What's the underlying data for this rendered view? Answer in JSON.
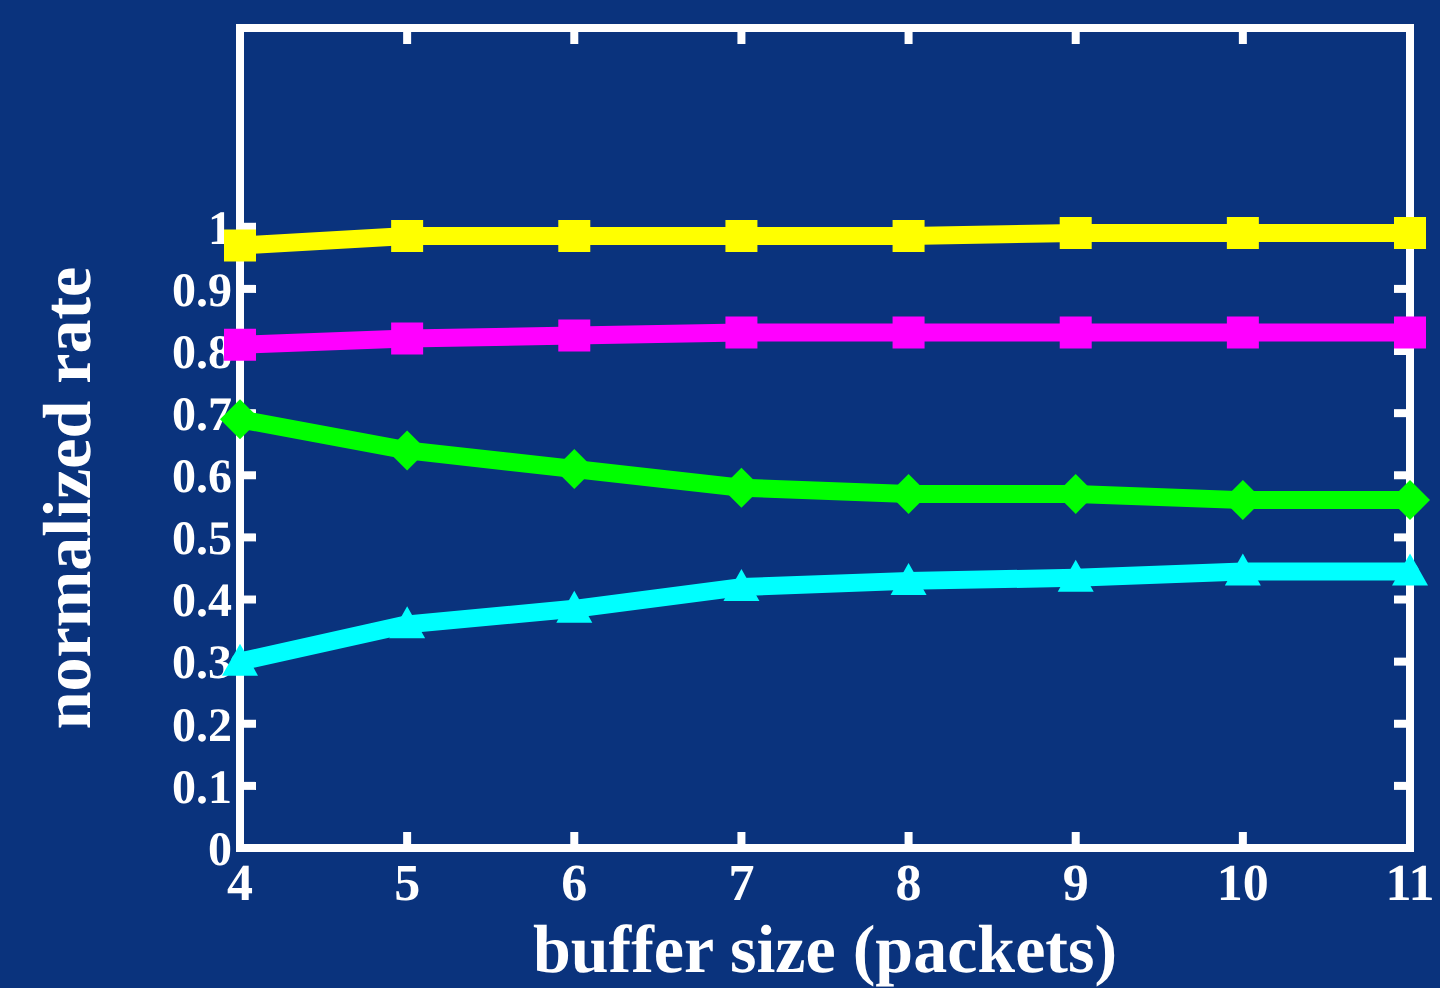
{
  "chart_data": {
    "type": "line",
    "xlabel": "buffer size (packets)",
    "ylabel": "normalized rate",
    "x": [
      4,
      5,
      6,
      7,
      8,
      9,
      10,
      11
    ],
    "xlim": [
      4,
      11
    ],
    "xticks": [
      4,
      5,
      6,
      7,
      8,
      9,
      10,
      11
    ],
    "ylim": [
      0,
      1.32
    ],
    "yticks": [
      0,
      0.1,
      0.2,
      0.3,
      0.4,
      0.5,
      0.6,
      0.7,
      0.8,
      0.9,
      1
    ],
    "grid": false,
    "series": [
      {
        "color": "#ffff00",
        "marker": "square",
        "values": [
          0.97,
          0.985,
          0.985,
          0.985,
          0.985,
          0.99,
          0.99,
          0.99
        ]
      },
      {
        "color": "#ff00ff",
        "marker": "square",
        "values": [
          0.81,
          0.82,
          0.825,
          0.83,
          0.83,
          0.83,
          0.83,
          0.83
        ]
      },
      {
        "color": "#00ff00",
        "marker": "diamond",
        "values": [
          0.69,
          0.64,
          0.61,
          0.58,
          0.57,
          0.57,
          0.56,
          0.56
        ]
      },
      {
        "color": "#00ffff",
        "marker": "triangle",
        "values": [
          0.3,
          0.36,
          0.385,
          0.42,
          0.43,
          0.435,
          0.445,
          0.445
        ]
      }
    ]
  }
}
